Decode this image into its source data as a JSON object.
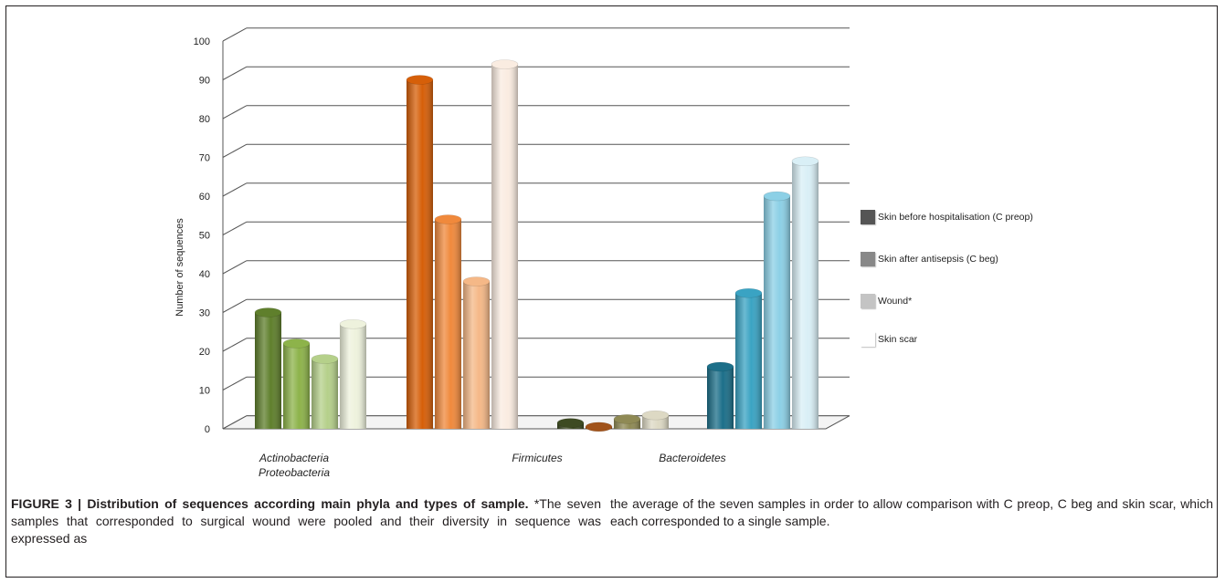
{
  "chart_data": {
    "type": "bar",
    "ylabel": "Number of sequences",
    "xlabel": "",
    "ylim": [
      0,
      100
    ],
    "y_ticks": [
      0,
      10,
      20,
      30,
      40,
      50,
      60,
      70,
      80,
      90,
      100
    ],
    "categories": [
      "Actinobacteria\nProteobacteria",
      "Firmicutes",
      "Bacteroidetes"
    ],
    "series": [
      {
        "name": "Skin before hospitalisation (C preop)",
        "values": [
          30,
          90,
          1.5
        ]
      },
      {
        "name": "Skin after antisepsis (C beg)",
        "values": [
          22,
          54,
          0.5
        ]
      },
      {
        "name": "Wound*",
        "values": [
          18,
          38,
          2.5
        ]
      },
      {
        "name": "Skin scar",
        "values": [
          27,
          94,
          3.5
        ]
      }
    ],
    "bacteroidetes_values": [
      16,
      35,
      60,
      69
    ],
    "category_colors": [
      [
        "#5f7f2c",
        "#8db34a",
        "#b5d08a",
        "#eef2dd"
      ],
      [
        "#d65f09",
        "#f0893c",
        "#f5b887",
        "#faece1"
      ],
      [
        "#1c6f89",
        "#3aa3c3",
        "#8cd0e6",
        "#d9eff6"
      ]
    ],
    "legend_colors": [
      "#555555",
      "#888888",
      "#c4c4c4",
      "#ffffff"
    ],
    "grid": true,
    "legend_position": "right"
  },
  "caption": {
    "figure_label": "FIGURE 3 | Distribution of sequences according main phyla and types of sample.",
    "text_left": " *The seven samples that corresponded to surgical wound were pooled and their diversity in sequence was expressed as",
    "text_right": "the average of the seven samples in order to allow comparison with C preop, C beg and skin scar, which each corresponded to a single sample."
  }
}
